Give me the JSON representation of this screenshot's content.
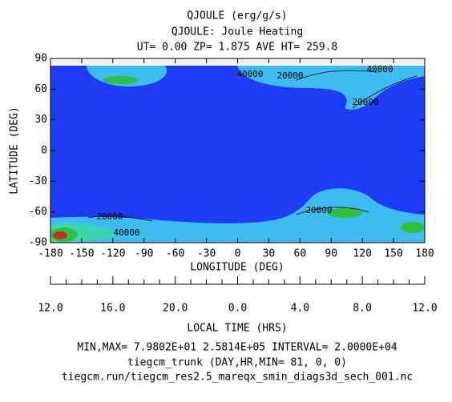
{
  "chart_data": {
    "type": "contour",
    "title": "QJOULE (erg/g/s)",
    "subtitle": "QJOULE: Joule Heating",
    "subtitle2": "UT= 0.00 ZP=  1.875 AVE HT= 259.8",
    "x_label": "LONGITUDE (DEG)",
    "y_label": "LATITUDE (DEG)",
    "xlim": [
      -180,
      180
    ],
    "xticks": [
      -180,
      -150,
      -120,
      -90,
      -60,
      -30,
      0,
      30,
      60,
      90,
      120,
      150,
      180
    ],
    "ylim": [
      -90,
      90
    ],
    "yticks": [
      -90,
      -60,
      -30,
      0,
      30,
      60,
      90
    ],
    "lt_label": "LOCAL TIME (HRS)",
    "lt_ticks": [
      {
        "value": 12,
        "label": "12.0"
      },
      {
        "value": 16,
        "label": "16.0"
      },
      {
        "value": 20,
        "label": "20.0"
      },
      {
        "value": 0,
        "label": "0.0"
      },
      {
        "value": 4,
        "label": "4.0"
      },
      {
        "value": 8,
        "label": "8.0"
      },
      {
        "value": 12,
        "label": "12.0"
      }
    ],
    "annotations": [
      "40000",
      "20000",
      "40000",
      "20000",
      "20000",
      "40000",
      "20000"
    ],
    "footer": [
      "MIN,MAX=  7.9802E+01  2.5814E+05 INTERVAL=  2.0000E+04",
      "tiegcm_trunk (DAY,HR,MIN= 81, 0, 0)",
      "tiegcm.run/tiegcm_res2.5_mareqx_smin_diags3d_sech_001.nc"
    ]
  }
}
